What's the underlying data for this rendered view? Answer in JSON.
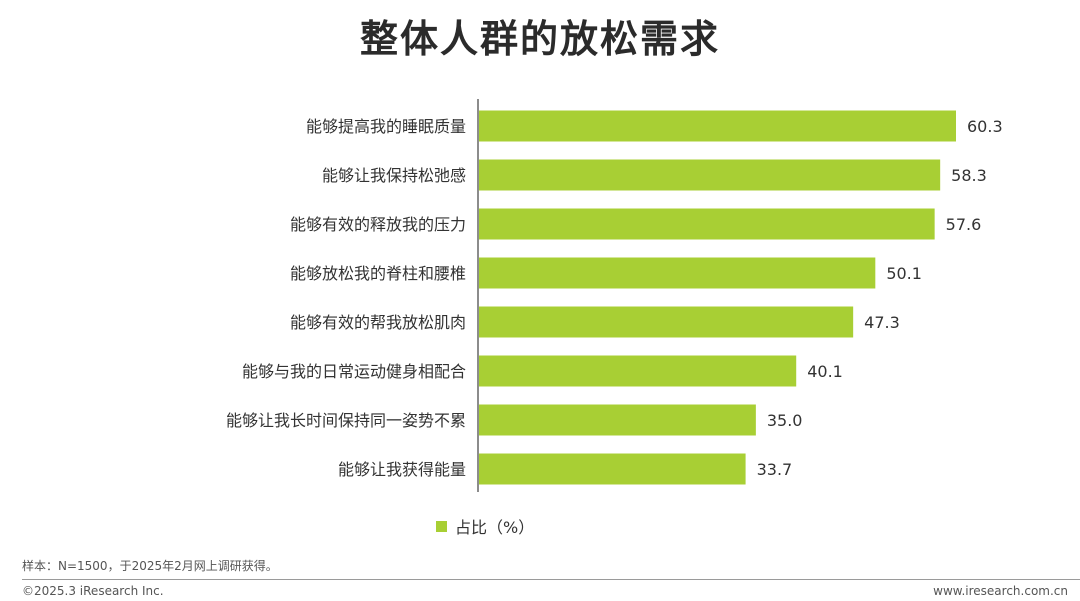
{
  "title": "整体人群的放松需求",
  "chart_data": {
    "type": "bar",
    "orientation": "horizontal",
    "categories": [
      "能够提高我的睡眠质量",
      "能够让我保持松弛感",
      "能够有效的释放我的压力",
      "能够放松我的脊柱和腰椎",
      "能够有效的帮我放松肌肉",
      "能够与我的日常运动健身相配合",
      "能够让我长时间保持同一姿势不累",
      "能够让我获得能量"
    ],
    "series": [
      {
        "name": "占比（%）",
        "values": [
          60.3,
          58.3,
          57.6,
          50.1,
          47.3,
          40.1,
          35.0,
          33.7
        ],
        "labels": [
          "60.3",
          "58.3",
          "57.6",
          "50.1",
          "47.3",
          "40.1",
          "35.0",
          "33.7"
        ],
        "color": "#a8cf34"
      }
    ],
    "legend": "bottom",
    "grid": false
  },
  "note": "样本：N=1500，于2025年2月网上调研获得。",
  "copyright": "©2025.3 iResearch Inc.",
  "website": "www.iresearch.com.cn"
}
